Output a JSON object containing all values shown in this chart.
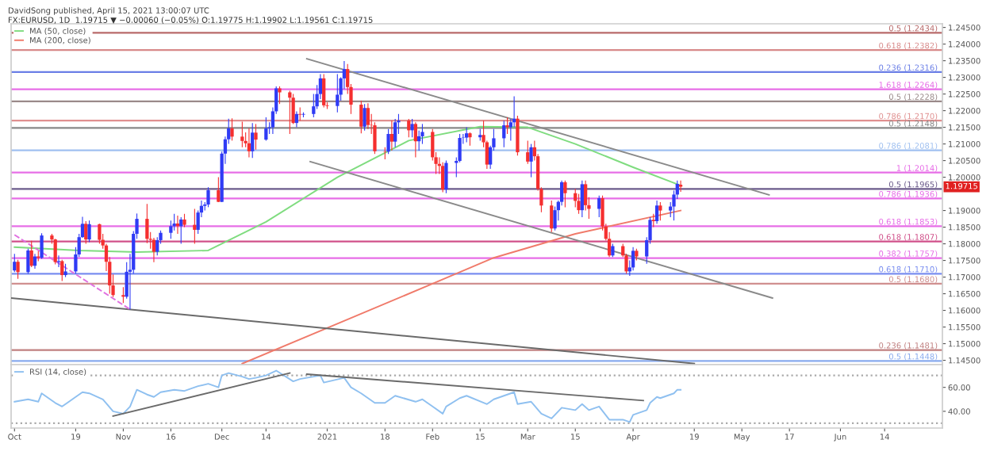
{
  "chart_data": [
    {
      "type": "candlestick",
      "title": "FX:EURUSD, 1D  1.19715 ▼ −0.00060 (−0.05%) O:1.19775 H:1.19902 L:1.19561 C:1.19715",
      "subtitle": "DavidSong published, April 15, 2021 13:00:07 UTC",
      "x": [
        "2020-10-01",
        "2020-10-02",
        "2020-10-05",
        "2020-10-06",
        "2020-10-07",
        "2020-10-08",
        "2020-10-09",
        "2020-10-12",
        "2020-10-13",
        "2020-10-14",
        "2020-10-15",
        "2020-10-16",
        "2020-10-19",
        "2020-10-20",
        "2020-10-21",
        "2020-10-22",
        "2020-10-23",
        "2020-10-26",
        "2020-10-27",
        "2020-10-28",
        "2020-10-29",
        "2020-10-30",
        "2020-11-02",
        "2020-11-03",
        "2020-11-04",
        "2020-11-05",
        "2020-11-06",
        "2020-11-09",
        "2020-11-10",
        "2020-11-11",
        "2020-11-12",
        "2020-11-13",
        "2020-11-16",
        "2020-11-17",
        "2020-11-18",
        "2020-11-19",
        "2020-11-20",
        "2020-11-23",
        "2020-11-24",
        "2020-11-25",
        "2020-11-26",
        "2020-11-27",
        "2020-11-30",
        "2020-12-01",
        "2020-12-02",
        "2020-12-03",
        "2020-12-04",
        "2020-12-07",
        "2020-12-08",
        "2020-12-09",
        "2020-12-10",
        "2020-12-11",
        "2020-12-14",
        "2020-12-15",
        "2020-12-16",
        "2020-12-17",
        "2020-12-18",
        "2020-12-21",
        "2020-12-22",
        "2020-12-23",
        "2020-12-24",
        "2020-12-25",
        "2020-12-28",
        "2020-12-29",
        "2020-12-30",
        "2020-12-31",
        "2021-01-01",
        "2021-01-04",
        "2021-01-05",
        "2021-01-06",
        "2021-01-07",
        "2021-01-08",
        "2021-01-11",
        "2021-01-12",
        "2021-01-13",
        "2021-01-14",
        "2021-01-15",
        "2021-01-18",
        "2021-01-19",
        "2021-01-20",
        "2021-01-21",
        "2021-01-22",
        "2021-01-25",
        "2021-01-26",
        "2021-01-27",
        "2021-01-28",
        "2021-01-29",
        "2021-02-01",
        "2021-02-02",
        "2021-02-03",
        "2021-02-04",
        "2021-02-05",
        "2021-02-08",
        "2021-02-09",
        "2021-02-10",
        "2021-02-11",
        "2021-02-12",
        "2021-02-15",
        "2021-02-16",
        "2021-02-17",
        "2021-02-18",
        "2021-02-19",
        "2021-02-22",
        "2021-02-23",
        "2021-02-24",
        "2021-02-25",
        "2021-02-26",
        "2021-03-01",
        "2021-03-02",
        "2021-03-03",
        "2021-03-04",
        "2021-03-05",
        "2021-03-08",
        "2021-03-09",
        "2021-03-10",
        "2021-03-11",
        "2021-03-12",
        "2021-03-15",
        "2021-03-16",
        "2021-03-17",
        "2021-03-18",
        "2021-03-19",
        "2021-03-22",
        "2021-03-23",
        "2021-03-24",
        "2021-03-25",
        "2021-03-26",
        "2021-03-29",
        "2021-03-30",
        "2021-03-31",
        "2021-04-01",
        "2021-04-02",
        "2021-04-05",
        "2021-04-06",
        "2021-04-07",
        "2021-04-08",
        "2021-04-09",
        "2021-04-12",
        "2021-04-13",
        "2021-04-14",
        "2021-04-15"
      ],
      "ohlc": [
        [
          1.172,
          1.177,
          1.1715,
          1.1746
        ],
        [
          1.1746,
          1.1752,
          1.1695,
          1.1715
        ],
        [
          1.1715,
          1.1785,
          1.171,
          1.178
        ],
        [
          1.178,
          1.1809,
          1.173,
          1.1734
        ],
        [
          1.1734,
          1.177,
          1.1725,
          1.1762
        ],
        [
          1.1762,
          1.1778,
          1.1748,
          1.1758
        ],
        [
          1.1758,
          1.1832,
          1.1755,
          1.1825
        ],
        [
          1.1825,
          1.183,
          1.18,
          1.1813
        ],
        [
          1.1813,
          1.1815,
          1.1738,
          1.1745
        ],
        [
          1.1745,
          1.1765,
          1.173,
          1.1748
        ],
        [
          1.1748,
          1.1752,
          1.1688,
          1.1706
        ],
        [
          1.1706,
          1.174,
          1.17,
          1.1717
        ],
        [
          1.1717,
          1.179,
          1.171,
          1.1768
        ],
        [
          1.1768,
          1.183,
          1.176,
          1.182
        ],
        [
          1.182,
          1.1881,
          1.1818,
          1.186
        ],
        [
          1.186,
          1.1868,
          1.18,
          1.1813
        ],
        [
          1.1813,
          1.187,
          1.1805,
          1.1859
        ],
        [
          1.1859,
          1.186,
          1.18,
          1.1812
        ],
        [
          1.1812,
          1.183,
          1.1785,
          1.1795
        ],
        [
          1.1795,
          1.18,
          1.1718,
          1.1746
        ],
        [
          1.1746,
          1.176,
          1.165,
          1.1675
        ],
        [
          1.1675,
          1.1708,
          1.164,
          1.1646
        ],
        [
          1.1646,
          1.167,
          1.1622,
          1.1641
        ],
        [
          1.1641,
          1.1745,
          1.1635,
          1.1716
        ],
        [
          1.1716,
          1.177,
          1.1603,
          1.1722
        ],
        [
          1.1722,
          1.1838,
          1.171,
          1.183
        ],
        [
          1.183,
          1.1891,
          1.1815,
          1.1875
        ],
        [
          1.1875,
          1.192,
          1.1802,
          1.1815
        ],
        [
          1.1815,
          1.1835,
          1.1785,
          1.1812
        ],
        [
          1.1812,
          1.1818,
          1.1745,
          1.1776
        ],
        [
          1.1776,
          1.182,
          1.1765,
          1.1811
        ],
        [
          1.1811,
          1.184,
          1.18,
          1.1833
        ],
        [
          1.1833,
          1.187,
          1.1815,
          1.1853
        ],
        [
          1.1853,
          1.189,
          1.184,
          1.1861
        ],
        [
          1.1861,
          1.1885,
          1.183,
          1.1853
        ],
        [
          1.1853,
          1.188,
          1.18,
          1.1873
        ],
        [
          1.1873,
          1.189,
          1.185,
          1.1857
        ],
        [
          1.1857,
          1.1905,
          1.18,
          1.1842
        ],
        [
          1.1842,
          1.19,
          1.183,
          1.1894
        ],
        [
          1.1894,
          1.193,
          1.188,
          1.1914
        ],
        [
          1.1914,
          1.1925,
          1.19,
          1.1918
        ],
        [
          1.1918,
          1.197,
          1.191,
          1.1961
        ],
        [
          1.1961,
          1.2,
          1.1925,
          1.1926
        ],
        [
          1.1926,
          1.2077,
          1.1925,
          1.2071
        ],
        [
          1.2071,
          1.2122,
          1.204,
          1.2114
        ],
        [
          1.2114,
          1.2176,
          1.21,
          1.2147
        ],
        [
          1.2147,
          1.2177,
          1.211,
          1.2122
        ],
        [
          1.2122,
          1.2167,
          1.209,
          1.2109
        ],
        [
          1.2109,
          1.2135,
          1.209,
          1.2102
        ],
        [
          1.2102,
          1.2147,
          1.206,
          1.2078
        ],
        [
          1.2078,
          1.2163,
          1.2058,
          1.2134
        ],
        [
          1.2134,
          1.216,
          1.2083,
          1.2113
        ],
        [
          1.2113,
          1.218,
          1.211,
          1.2147
        ],
        [
          1.2147,
          1.2165,
          1.213,
          1.215
        ],
        [
          1.215,
          1.221,
          1.213,
          1.2198
        ],
        [
          1.2198,
          1.2273,
          1.219,
          1.2267
        ],
        [
          1.2267,
          1.2273,
          1.222,
          1.2255
        ],
        [
          1.2255,
          1.226,
          1.213,
          1.2239
        ],
        [
          1.2239,
          1.225,
          1.216,
          1.2163
        ],
        [
          1.2163,
          1.2198,
          1.215,
          1.219
        ],
        [
          1.219,
          1.221,
          1.217,
          1.2188
        ],
        [
          1.2188,
          1.2195,
          1.218,
          1.219
        ],
        [
          1.219,
          1.225,
          1.218,
          1.2213
        ],
        [
          1.2213,
          1.2277,
          1.2205,
          1.225
        ],
        [
          1.225,
          1.231,
          1.2235,
          1.2297
        ],
        [
          1.2297,
          1.231,
          1.221,
          1.2216
        ],
        [
          1.2216,
          1.2225,
          1.2205,
          1.2214
        ],
        [
          1.2214,
          1.231,
          1.2195,
          1.2248
        ],
        [
          1.2248,
          1.23,
          1.223,
          1.2297
        ],
        [
          1.2297,
          1.2349,
          1.2265,
          1.2325
        ],
        [
          1.2325,
          1.234,
          1.225,
          1.2271
        ],
        [
          1.2271,
          1.228,
          1.219,
          1.2218
        ],
        [
          1.2218,
          1.223,
          1.2132,
          1.2152
        ],
        [
          1.2152,
          1.222,
          1.214,
          1.2208
        ],
        [
          1.2208,
          1.2222,
          1.2145,
          1.2157
        ],
        [
          1.2157,
          1.219,
          1.213,
          1.2156
        ],
        [
          1.2156,
          1.2165,
          1.207,
          1.2078
        ],
        [
          1.2078,
          1.209,
          1.2054,
          1.2077
        ],
        [
          1.2077,
          1.2145,
          1.207,
          1.213
        ],
        [
          1.213,
          1.217,
          1.208,
          1.2107
        ],
        [
          1.2107,
          1.2175,
          1.209,
          1.2165
        ],
        [
          1.2165,
          1.219,
          1.213,
          1.217
        ],
        [
          1.217,
          1.2175,
          1.212,
          1.2141
        ],
        [
          1.2141,
          1.2175,
          1.212,
          1.216
        ],
        [
          1.216,
          1.2165,
          1.206,
          1.2108
        ],
        [
          1.2108,
          1.214,
          1.208,
          1.2123
        ],
        [
          1.2123,
          1.216,
          1.21,
          1.2136
        ],
        [
          1.2136,
          1.2145,
          1.205,
          1.206
        ],
        [
          1.206,
          1.2075,
          1.201,
          1.204
        ],
        [
          1.204,
          1.206,
          1.201,
          1.2034
        ],
        [
          1.2034,
          1.2045,
          1.1955,
          1.1963
        ],
        [
          1.1963,
          1.205,
          1.1952,
          1.2043
        ],
        [
          1.2043,
          1.206,
          1.2,
          1.2049
        ],
        [
          1.2049,
          1.213,
          1.2045,
          1.2118
        ],
        [
          1.2118,
          1.213,
          1.21,
          1.2119
        ],
        [
          1.2119,
          1.215,
          1.2105,
          1.2132
        ],
        [
          1.2132,
          1.2135,
          1.2095,
          1.212
        ],
        [
          1.212,
          1.2145,
          1.211,
          1.2127
        ],
        [
          1.2127,
          1.217,
          1.209,
          1.2105
        ],
        [
          1.2105,
          1.211,
          1.2025,
          1.2038
        ],
        [
          1.2038,
          1.2095,
          1.2025,
          1.209
        ],
        [
          1.209,
          1.2145,
          1.208,
          1.2117
        ],
        [
          1.2117,
          1.217,
          1.209,
          1.2156
        ],
        [
          1.2156,
          1.218,
          1.213,
          1.215
        ],
        [
          1.215,
          1.2175,
          1.211,
          1.2165
        ],
        [
          1.2165,
          1.2243,
          1.215,
          1.2176
        ],
        [
          1.2176,
          1.2185,
          1.2065,
          1.2075
        ],
        [
          1.2075,
          1.211,
          1.204,
          1.2047
        ],
        [
          1.2047,
          1.21,
          1.2,
          1.209
        ],
        [
          1.209,
          1.211,
          1.205,
          1.2063
        ],
        [
          1.2063,
          1.207,
          1.196,
          1.1965
        ],
        [
          1.1965,
          1.197,
          1.1895,
          1.1915
        ],
        [
          1.1915,
          1.193,
          1.1835,
          1.1846
        ],
        [
          1.1846,
          1.1912,
          1.184,
          1.1901
        ],
        [
          1.1901,
          1.193,
          1.187,
          1.1926
        ],
        [
          1.1926,
          1.199,
          1.1915,
          1.1985
        ],
        [
          1.1985,
          1.199,
          1.191,
          1.1952
        ],
        [
          1.1952,
          1.1965,
          1.191,
          1.1929
        ],
        [
          1.1929,
          1.195,
          1.189,
          1.1901
        ],
        [
          1.1901,
          1.199,
          1.188,
          1.1979
        ],
        [
          1.1979,
          1.199,
          1.19,
          1.1916
        ],
        [
          1.1916,
          1.194,
          1.1875,
          1.1905
        ],
        [
          1.1905,
          1.1945,
          1.188,
          1.1937
        ],
        [
          1.1937,
          1.1945,
          1.184,
          1.1852
        ],
        [
          1.1852,
          1.186,
          1.181,
          1.1815
        ],
        [
          1.1815,
          1.1835,
          1.176,
          1.1765
        ],
        [
          1.1765,
          1.18,
          1.176,
          1.1793
        ],
        [
          1.1793,
          1.18,
          1.176,
          1.1765
        ],
        [
          1.1765,
          1.177,
          1.171,
          1.1717
        ],
        [
          1.1717,
          1.175,
          1.1704,
          1.1729
        ],
        [
          1.1729,
          1.179,
          1.172,
          1.1779
        ],
        [
          1.1779,
          1.1785,
          1.175,
          1.1762
        ],
        [
          1.1762,
          1.182,
          1.174,
          1.1811
        ],
        [
          1.1811,
          1.188,
          1.18,
          1.1872
        ],
        [
          1.1872,
          1.189,
          1.185,
          1.1868
        ],
        [
          1.1868,
          1.193,
          1.186,
          1.1915
        ],
        [
          1.1915,
          1.1925,
          1.187,
          1.19
        ],
        [
          1.19,
          1.1925,
          1.188,
          1.1912
        ],
        [
          1.1912,
          1.196,
          1.187,
          1.1948
        ],
        [
          1.1948,
          1.199,
          1.1935,
          1.198
        ],
        [
          1.19775,
          1.19902,
          1.19561,
          1.19715
        ]
      ],
      "colors": [
        "#2f3bf5",
        "#f52f2f",
        "#2f3bf5",
        "#f52f2f",
        "#2f3bf5",
        "#f52f2f",
        "#2f3bf5",
        "#f52f2f",
        "#f52f2f",
        "#2f3bf5",
        "#f52f2f",
        "#2f3bf5",
        "#2f3bf5",
        "#2f3bf5",
        "#2f3bf5",
        "#f52f2f",
        "#2f3bf5",
        "#f52f2f",
        "#f52f2f",
        "#f52f2f",
        "#f52f2f",
        "#f52f2f",
        "#f52f2f",
        "#2f3bf5",
        "#2f3bf5",
        "#2f3bf5",
        "#2f3bf5",
        "#f52f2f",
        "#f52f2f",
        "#f52f2f",
        "#2f3bf5",
        "#2f3bf5",
        "#2f3bf5",
        "#2f3bf5",
        "#f52f2f",
        "#2f3bf5",
        "#f52f2f",
        "#f52f2f",
        "#2f3bf5",
        "#2f3bf5",
        "#2f3bf5",
        "#2f3bf5",
        "#f52f2f",
        "#2f3bf5",
        "#2f3bf5",
        "#2f3bf5",
        "#f52f2f",
        "#f52f2f",
        "#f52f2f",
        "#f52f2f",
        "#2f3bf5",
        "#f52f2f",
        "#2f3bf5",
        "#2f3bf5",
        "#2f3bf5",
        "#2f3bf5",
        "#f52f2f",
        "#f52f2f",
        "#f52f2f",
        "#2f3bf5",
        "#f52f2f",
        "#2f3bf5",
        "#2f3bf5",
        "#2f3bf5",
        "#2f3bf5",
        "#f52f2f",
        "#f52f2f",
        "#2f3bf5",
        "#2f3bf5",
        "#2f3bf5",
        "#f52f2f",
        "#f52f2f",
        "#f52f2f",
        "#2f3bf5",
        "#f52f2f",
        "#f52f2f",
        "#f52f2f",
        "#f52f2f",
        "#2f3bf5",
        "#f52f2f",
        "#2f3bf5",
        "#2f3bf5",
        "#f52f2f",
        "#2f3bf5",
        "#f52f2f",
        "#2f3bf5",
        "#2f3bf5",
        "#f52f2f",
        "#f52f2f",
        "#f52f2f",
        "#f52f2f",
        "#2f3bf5",
        "#2f3bf5",
        "#2f3bf5",
        "#2f3bf5",
        "#2f3bf5",
        "#f52f2f",
        "#2f3bf5",
        "#f52f2f",
        "#f52f2f",
        "#2f3bf5",
        "#2f3bf5",
        "#2f3bf5",
        "#f52f2f",
        "#2f3bf5",
        "#2f3bf5",
        "#f52f2f",
        "#f52f2f",
        "#2f3bf5",
        "#f52f2f",
        "#f52f2f",
        "#f52f2f",
        "#f52f2f",
        "#2f3bf5",
        "#2f3bf5",
        "#2f3bf5",
        "#f52f2f",
        "#f52f2f",
        "#f52f2f",
        "#2f3bf5",
        "#f52f2f",
        "#f52f2f",
        "#2f3bf5",
        "#f52f2f",
        "#f52f2f",
        "#f52f2f",
        "#2f3bf5",
        "#f52f2f",
        "#f52f2f",
        "#2f3bf5",
        "#2f3bf5",
        "#f52f2f",
        "#2f3bf5",
        "#2f3bf5",
        "#f52f2f",
        "#2f3bf5",
        "#f52f2f",
        "#2f3bf5",
        "#2f3bf5",
        "#2f3bf5",
        "#f52f2f"
      ],
      "series": [
        {
          "name": "MA (50, close)",
          "type": "line",
          "color": "#7fdc7f",
          "x": [
            "2020-10-01",
            "2020-10-20",
            "2020-11-06",
            "2020-11-27",
            "2020-12-14",
            "2021-01-04",
            "2021-01-25",
            "2021-02-15",
            "2021-03-01",
            "2021-03-15",
            "2021-04-01",
            "2021-04-15"
          ],
          "values": [
            1.179,
            1.178,
            1.1775,
            1.178,
            1.1866,
            1.2,
            1.211,
            1.2152,
            1.215,
            1.21,
            1.203,
            1.1975
          ]
        },
        {
          "name": "MA (200, close)",
          "type": "line",
          "color": "#f07a6a",
          "x": [
            "2020-12-07",
            "2021-01-04",
            "2021-02-01",
            "2021-02-19",
            "2021-03-15",
            "2021-04-15"
          ],
          "values": [
            1.144,
            1.156,
            1.168,
            1.1758,
            1.183,
            1.19
          ]
        },
        {
          "type": "line",
          "color": "#8a8a8a",
          "x": [
            "2020-12-26",
            "2021-05-11"
          ],
          "values": [
            1.2356,
            1.1947
          ]
        },
        {
          "type": "line",
          "color": "#8a8a8a",
          "x": [
            "2020-12-27",
            "2021-05-12"
          ],
          "values": [
            1.2047,
            1.1637
          ]
        },
        {
          "type": "line",
          "color": "#6a6a6a",
          "x": [
            "2020-09-30",
            "2021-04-19"
          ],
          "values": [
            1.1637,
            1.144
          ]
        },
        {
          "type": "line",
          "color": "#e070e0",
          "line_style": "dashed",
          "x": [
            "2020-10-01",
            "2020-11-04"
          ],
          "values": [
            1.1827,
            1.1603
          ]
        }
      ],
      "ref_lines": [
        {
          "axis": "y",
          "value": 1.2434,
          "label": "0.5 (1.2434)",
          "color": "#b86a6a"
        },
        {
          "axis": "y",
          "value": 1.2382,
          "label": "0.618 (1.2382)",
          "color": "#d88a8a"
        },
        {
          "axis": "y",
          "value": 1.2316,
          "label": "0.236 (1.2316)",
          "color": "#6a7ee6"
        },
        {
          "axis": "y",
          "value": 1.2264,
          "label": "1.618 (1.2264)",
          "color": "#e76ee7"
        },
        {
          "axis": "y",
          "value": 1.2228,
          "label": "0.5 (1.2228)",
          "color": "#9a8a8a"
        },
        {
          "axis": "y",
          "value": 1.217,
          "label": "0.786 (1.2170)",
          "color": "#e09090"
        },
        {
          "axis": "y",
          "value": 1.2148,
          "label": "0.5 (1.2148)",
          "color": "#888888"
        },
        {
          "axis": "y",
          "value": 1.2081,
          "label": "0.786 (1.2081)",
          "color": "#a0c0f0"
        },
        {
          "axis": "y",
          "value": 1.2014,
          "label": "1 (1.2014)",
          "color": "#e76ee7"
        },
        {
          "axis": "y",
          "value": 1.1965,
          "label": "0.5 (1.1965)",
          "color": "#6b5b8b"
        },
        {
          "axis": "y",
          "value": 1.1936,
          "label": "0.786 (1.1936)",
          "color": "#e76ee7"
        },
        {
          "axis": "y",
          "value": 1.1853,
          "label": "0.618 (1.1853)",
          "color": "#e76ee7"
        },
        {
          "axis": "y",
          "value": 1.1807,
          "label": "0.618 (1.1807)",
          "color": "#d0508a"
        },
        {
          "axis": "y",
          "value": 1.1757,
          "label": "0.382 (1.1757)",
          "color": "#e76ee7"
        },
        {
          "axis": "y",
          "value": 1.171,
          "label": "0.618 (1.1710)",
          "color": "#7a8ef0"
        },
        {
          "axis": "y",
          "value": 1.168,
          "label": "0.5 (1.1680)",
          "color": "#d09090"
        },
        {
          "axis": "y",
          "value": 1.1481,
          "label": "0.236 (1.1481)",
          "color": "#c08080"
        },
        {
          "axis": "y",
          "value": 1.1448,
          "label": "0.5 (1.1448)",
          "color": "#88aaee"
        }
      ],
      "annotations": [
        {
          "text": "1.19715",
          "y": 1.19715
        }
      ],
      "legend": "top left",
      "tick_labels": "y",
      "xlim": [
        "2020-09-30",
        "2021-07-01"
      ],
      "ylim": [
        1.1437,
        1.2461
      ],
      "yticks": [
        {
          "value": 1.145,
          "label": "1.14500"
        },
        {
          "value": 1.15,
          "label": "1.15000"
        },
        {
          "value": 1.155,
          "label": "1.15500"
        },
        {
          "value": 1.16,
          "label": "1.16000"
        },
        {
          "value": 1.165,
          "label": "1.16500"
        },
        {
          "value": 1.17,
          "label": "1.17000"
        },
        {
          "value": 1.175,
          "label": "1.17500"
        },
        {
          "value": 1.18,
          "label": "1.18000"
        },
        {
          "value": 1.185,
          "label": "1.18500"
        },
        {
          "value": 1.19,
          "label": "1.19000"
        },
        {
          "value": 1.2,
          "label": "1.20000"
        },
        {
          "value": 1.205,
          "label": "1.20500"
        },
        {
          "value": 1.21,
          "label": "1.21000"
        },
        {
          "value": 1.215,
          "label": "1.21500"
        },
        {
          "value": 1.22,
          "label": "1.22000"
        },
        {
          "value": 1.225,
          "label": "1.22500"
        },
        {
          "value": 1.23,
          "label": "1.23000"
        },
        {
          "value": 1.235,
          "label": "1.23500"
        },
        {
          "value": 1.24,
          "label": "1.24000"
        },
        {
          "value": 1.245,
          "label": "1.24500"
        }
      ]
    },
    {
      "type": "line",
      "series": [
        {
          "name": "RSI (14, close)",
          "color": "#8fc0f0",
          "x": [
            "2020-10-01",
            "2020-10-05",
            "2020-10-08",
            "2020-10-09",
            "2020-10-13",
            "2020-10-15",
            "2020-10-19",
            "2020-10-21",
            "2020-10-23",
            "2020-10-27",
            "2020-10-30",
            "2020-11-02",
            "2020-11-04",
            "2020-11-06",
            "2020-11-09",
            "2020-11-11",
            "2020-11-13",
            "2020-11-17",
            "2020-11-20",
            "2020-11-24",
            "2020-11-27",
            "2020-11-30",
            "2020-12-01",
            "2020-12-03",
            "2020-12-07",
            "2020-12-09",
            "2020-12-11",
            "2020-12-14",
            "2020-12-17",
            "2020-12-22",
            "2020-12-24",
            "2020-12-30",
            "2020-12-31",
            "2021-01-06",
            "2021-01-08",
            "2021-01-11",
            "2021-01-15",
            "2021-01-18",
            "2021-01-21",
            "2021-01-27",
            "2021-01-29",
            "2021-02-01",
            "2021-02-04",
            "2021-02-05",
            "2021-02-09",
            "2021-02-11",
            "2021-02-17",
            "2021-02-19",
            "2021-02-25",
            "2021-02-26",
            "2021-03-02",
            "2021-03-05",
            "2021-03-08",
            "2021-03-11",
            "2021-03-15",
            "2021-03-17",
            "2021-03-19",
            "2021-03-22",
            "2021-03-25",
            "2021-03-29",
            "2021-03-31",
            "2021-04-01",
            "2021-04-05",
            "2021-04-06",
            "2021-04-08",
            "2021-04-09",
            "2021-04-13",
            "2021-04-14",
            "2021-04-15"
          ],
          "values": [
            48,
            50,
            48,
            55,
            47,
            44,
            52,
            56,
            55,
            50,
            40,
            38,
            44,
            58,
            54,
            52,
            56,
            58,
            57,
            61,
            63,
            60,
            70,
            72,
            69,
            67,
            68,
            70,
            74,
            65,
            67,
            70,
            64,
            68,
            60,
            55,
            47,
            47,
            53,
            48,
            50,
            44,
            38,
            44,
            51,
            53,
            46,
            50,
            56,
            46,
            48,
            38,
            34,
            43,
            41,
            46,
            41,
            44,
            33,
            33,
            31,
            37,
            41,
            47,
            52,
            51,
            55,
            58,
            58
          ]
        },
        {
          "color": "#6a6a6a",
          "x": [
            "2020-10-30",
            "2020-12-21"
          ],
          "values": [
            36,
            72
          ]
        },
        {
          "color": "#6a6a6a",
          "x": [
            "2020-12-26",
            "2021-04-04"
          ],
          "values": [
            71,
            49
          ]
        }
      ],
      "ref_lines": [
        {
          "axis": "y",
          "value": 70,
          "line_style": "dotted",
          "color": "#aaaaaa"
        },
        {
          "axis": "y",
          "value": 30,
          "line_style": "dotted",
          "color": "#aaaaaa"
        }
      ],
      "legend": "top left",
      "xlim": [
        "2020-09-30",
        "2021-07-01"
      ],
      "ylim": [
        26,
        79
      ],
      "yticks": [
        {
          "value": 40,
          "label": "40.00"
        },
        {
          "value": 60,
          "label": "60.00"
        }
      ],
      "xticks": [
        {
          "value": "2020-10-01",
          "label": "Oct"
        },
        {
          "value": "2020-10-19",
          "label": "19"
        },
        {
          "value": "2020-11-02",
          "label": "Nov"
        },
        {
          "value": "2020-11-16",
          "label": "16"
        },
        {
          "value": "2020-12-01",
          "label": "Dec"
        },
        {
          "value": "2020-12-14",
          "label": "14"
        },
        {
          "value": "2021-01-01",
          "label": "2021"
        },
        {
          "value": "2021-01-18",
          "label": "18"
        },
        {
          "value": "2021-02-01",
          "label": "Feb"
        },
        {
          "value": "2021-02-15",
          "label": "15"
        },
        {
          "value": "2021-03-01",
          "label": "Mar"
        },
        {
          "value": "2021-03-15",
          "label": "15"
        },
        {
          "value": "2021-04-01",
          "label": "Apr"
        },
        {
          "value": "2021-04-19",
          "label": "19"
        },
        {
          "value": "2021-05-03",
          "label": "May"
        },
        {
          "value": "2021-05-17",
          "label": "17"
        },
        {
          "value": "2021-06-01",
          "label": "Jun"
        },
        {
          "value": "2021-06-14",
          "label": "14"
        }
      ]
    }
  ]
}
